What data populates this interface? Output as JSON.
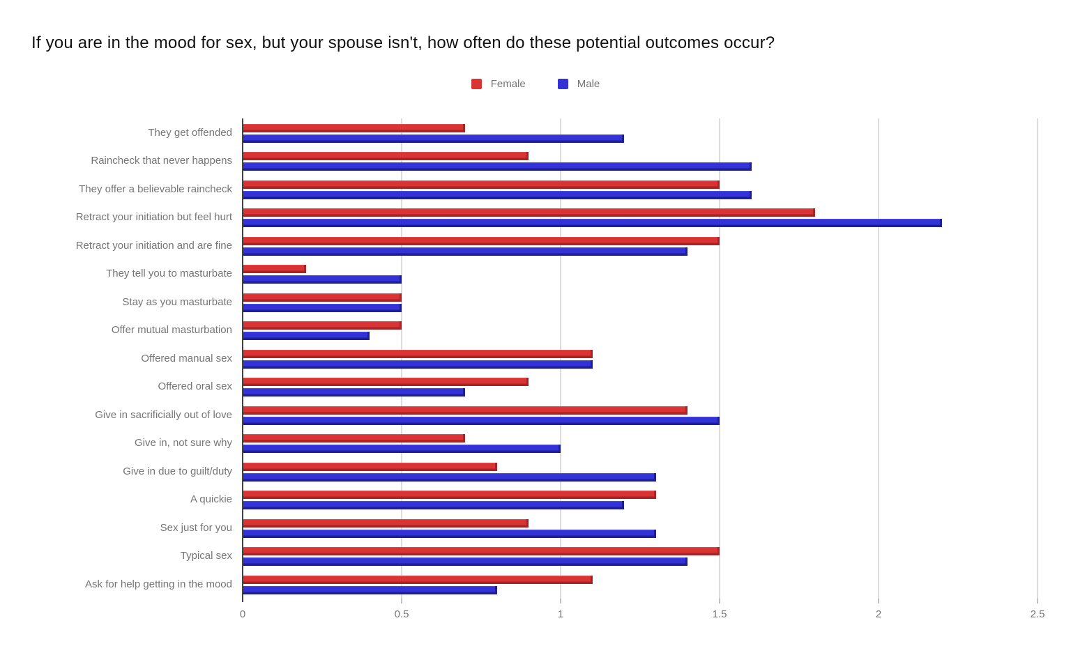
{
  "title": "If you are in the mood for sex, but your spouse isn't, how often do these potential outcomes occur?",
  "legend": {
    "items": [
      {
        "label": "Female",
        "color": "#d93334"
      },
      {
        "label": "Male",
        "color": "#3232d6"
      }
    ]
  },
  "colors": {
    "female_main": "#d93334",
    "female_light": "#e25450",
    "female_dark": "#a82424",
    "male_main": "#3232d6",
    "male_light": "#5252e2",
    "male_dark": "#1e1e96",
    "gridline": "#dcdcdc",
    "zero_axis": "#424242",
    "text_secondary": "#757575"
  },
  "chart_data": {
    "type": "bar",
    "orientation": "horizontal",
    "title": "If you are in the mood for sex, but your spouse isn't, how often do these potential outcomes occur?",
    "categories": [
      "They get offended",
      "Raincheck that never happens",
      "They offer a believable raincheck",
      "Retract your initiation but feel hurt",
      "Retract your initiation and are fine",
      "They tell you to masturbate",
      "Stay as you masturbate",
      "Offer mutual masturbation",
      "Offered manual sex",
      "Offered oral sex",
      "Give in sacrificially out of love",
      "Give in, not sure why",
      "Give in due to guilt/duty",
      "A quickie",
      "Sex just for you",
      "Typical sex",
      "Ask for help getting in the mood"
    ],
    "series": [
      {
        "name": "Female",
        "color": "#d93334",
        "values": [
          0.7,
          0.9,
          1.5,
          1.8,
          1.5,
          0.2,
          0.5,
          0.5,
          1.1,
          0.9,
          1.4,
          0.7,
          0.8,
          1.3,
          0.9,
          1.5,
          1.1
        ]
      },
      {
        "name": "Male",
        "color": "#3232d6",
        "values": [
          1.2,
          1.6,
          1.6,
          2.2,
          1.4,
          0.5,
          0.5,
          0.4,
          1.1,
          0.7,
          1.5,
          1.0,
          1.3,
          1.2,
          1.3,
          1.4,
          0.8
        ]
      }
    ],
    "xlim": [
      0,
      2.5
    ],
    "xticks": [
      0,
      0.5,
      1,
      1.5,
      2,
      2.5
    ],
    "xtick_labels": [
      "0",
      "0.5",
      "1",
      "1.5",
      "2",
      "2.5"
    ],
    "grid": "vertical",
    "legend_position": "top-center"
  }
}
